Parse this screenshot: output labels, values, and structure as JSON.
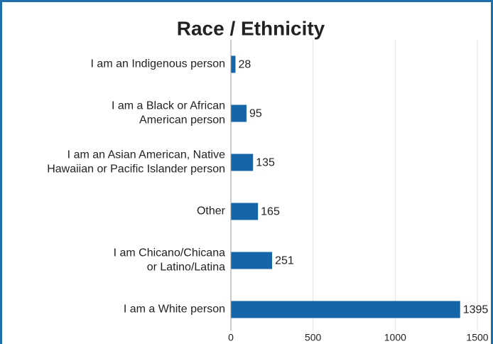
{
  "chart_data": {
    "type": "bar",
    "orientation": "horizontal",
    "title": "Race / Ethnicity",
    "categories": [
      "I am an Indigenous person",
      "I am a Black or African American person",
      "I am an Asian American, Native Hawaiian or Pacific Islander person",
      "Other",
      "I am Chicano/Chicana or Latino/Latina",
      "I am a White person"
    ],
    "values": [
      28,
      95,
      135,
      165,
      251,
      1395
    ],
    "color": "#1565a8",
    "xlim": [
      0,
      1500
    ],
    "xticks": [
      0,
      500,
      1000,
      1500
    ],
    "grid": true
  }
}
